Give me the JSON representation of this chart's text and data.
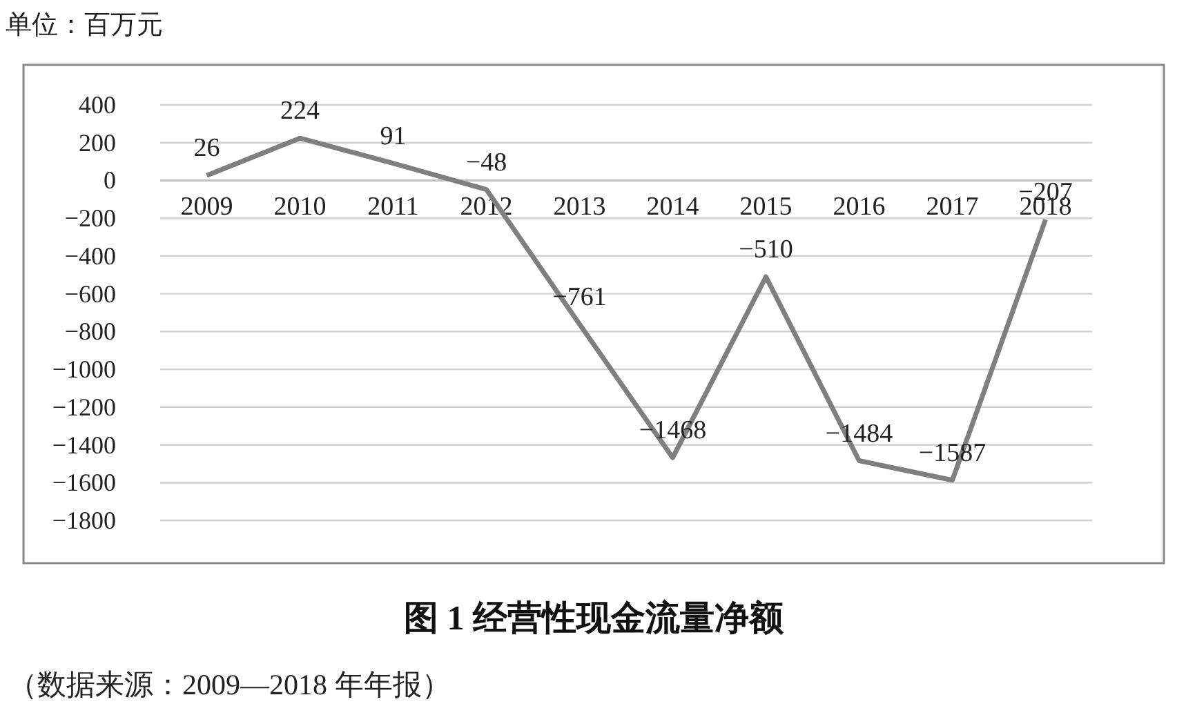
{
  "chart_data": {
    "type": "line",
    "title": "图 1  经营性现金流量净额",
    "ylabel": "单位：百万元",
    "annotations": [
      "（数据来源：2009—2018 年年报）"
    ],
    "categories": [
      "2009",
      "2010",
      "2011",
      "2012",
      "2013",
      "2014",
      "2015",
      "2016",
      "2017",
      "2018"
    ],
    "series": [
      {
        "color": "#7f7f7f",
        "values": [
          26,
          224,
          91,
          -48,
          -761,
          -1468,
          -510,
          -1484,
          -1587,
          -207
        ]
      }
    ],
    "ylim": [
      -1800,
      400
    ],
    "yticks": [
      400,
      200,
      0,
      -200,
      -400,
      -600,
      -800,
      -1000,
      -1200,
      -1400,
      -1600,
      -1800
    ],
    "grid": "y",
    "data_labels": true,
    "marker": "none",
    "line_style": "solid"
  }
}
